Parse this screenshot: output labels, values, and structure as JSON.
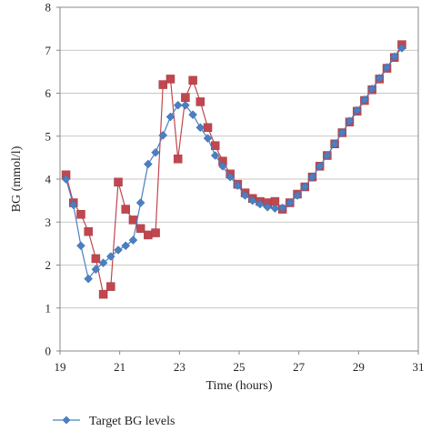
{
  "chart_data": {
    "type": "line",
    "title": "",
    "xlabel": "Time (hours)",
    "ylabel": "BG (mmol/l)",
    "xlim": [
      19,
      31
    ],
    "ylim": [
      0,
      8
    ],
    "xticks": [
      "19",
      "21",
      "23",
      "25",
      "27",
      "29",
      "31"
    ],
    "yticks": [
      "0",
      "1",
      "2",
      "3",
      "4",
      "5",
      "6",
      "7",
      "8"
    ],
    "grid": "horizontal",
    "legend_position": "bottom-left",
    "series": [
      {
        "name": "Target BG levels",
        "color": "#4a7fc1",
        "marker": "diamond",
        "x": [
          19.2,
          19.45,
          19.7,
          19.95,
          20.2,
          20.45,
          20.7,
          20.95,
          21.2,
          21.45,
          21.7,
          21.95,
          22.2,
          22.45,
          22.7,
          22.95,
          23.2,
          23.45,
          23.7,
          23.95,
          24.2,
          24.45,
          24.7,
          24.95,
          25.2,
          25.45,
          25.7,
          25.95,
          26.2,
          26.45,
          26.7,
          26.95,
          27.2,
          27.45,
          27.7,
          27.95,
          28.2,
          28.45,
          28.7,
          28.95,
          29.2,
          29.45,
          29.7,
          29.95,
          30.2,
          30.45
        ],
        "values": [
          4.0,
          3.4,
          2.45,
          1.68,
          1.9,
          2.05,
          2.2,
          2.35,
          2.45,
          2.58,
          3.45,
          4.35,
          4.62,
          5.02,
          5.45,
          5.72,
          5.72,
          5.5,
          5.2,
          4.95,
          4.55,
          4.3,
          4.05,
          3.85,
          3.62,
          3.5,
          3.42,
          3.35,
          3.32,
          3.33,
          3.45,
          3.62,
          3.82,
          4.05,
          4.3,
          4.55,
          4.82,
          5.08,
          5.35,
          5.6,
          5.85,
          6.1,
          6.35,
          6.6,
          6.85,
          7.05
        ]
      },
      {
        "name": "",
        "color": "#c0474f",
        "marker": "square",
        "x": [
          19.2,
          19.45,
          19.7,
          19.95,
          20.2,
          20.45,
          20.7,
          20.95,
          21.2,
          21.45,
          21.7,
          21.95,
          22.2,
          22.45,
          22.7,
          22.95,
          23.2,
          23.45,
          23.7,
          23.95,
          24.2,
          24.45,
          24.7,
          24.95,
          25.2,
          25.45,
          25.7,
          25.95,
          26.2,
          26.45,
          26.7,
          26.95,
          27.2,
          27.45,
          27.7,
          27.95,
          28.2,
          28.45,
          28.7,
          28.95,
          29.2,
          29.45,
          29.7,
          29.95,
          30.2,
          30.45
        ],
        "values": [
          4.1,
          3.45,
          3.18,
          2.78,
          2.15,
          1.32,
          1.5,
          3.93,
          3.3,
          3.05,
          2.85,
          2.7,
          2.75,
          6.2,
          6.33,
          4.47,
          5.9,
          6.3,
          5.8,
          5.2,
          4.78,
          4.42,
          4.12,
          3.88,
          3.68,
          3.55,
          3.48,
          3.45,
          3.48,
          3.3,
          3.45,
          3.65,
          3.82,
          4.05,
          4.3,
          4.55,
          4.82,
          5.08,
          5.33,
          5.58,
          5.83,
          6.08,
          6.33,
          6.58,
          6.83,
          7.13
        ]
      }
    ]
  }
}
